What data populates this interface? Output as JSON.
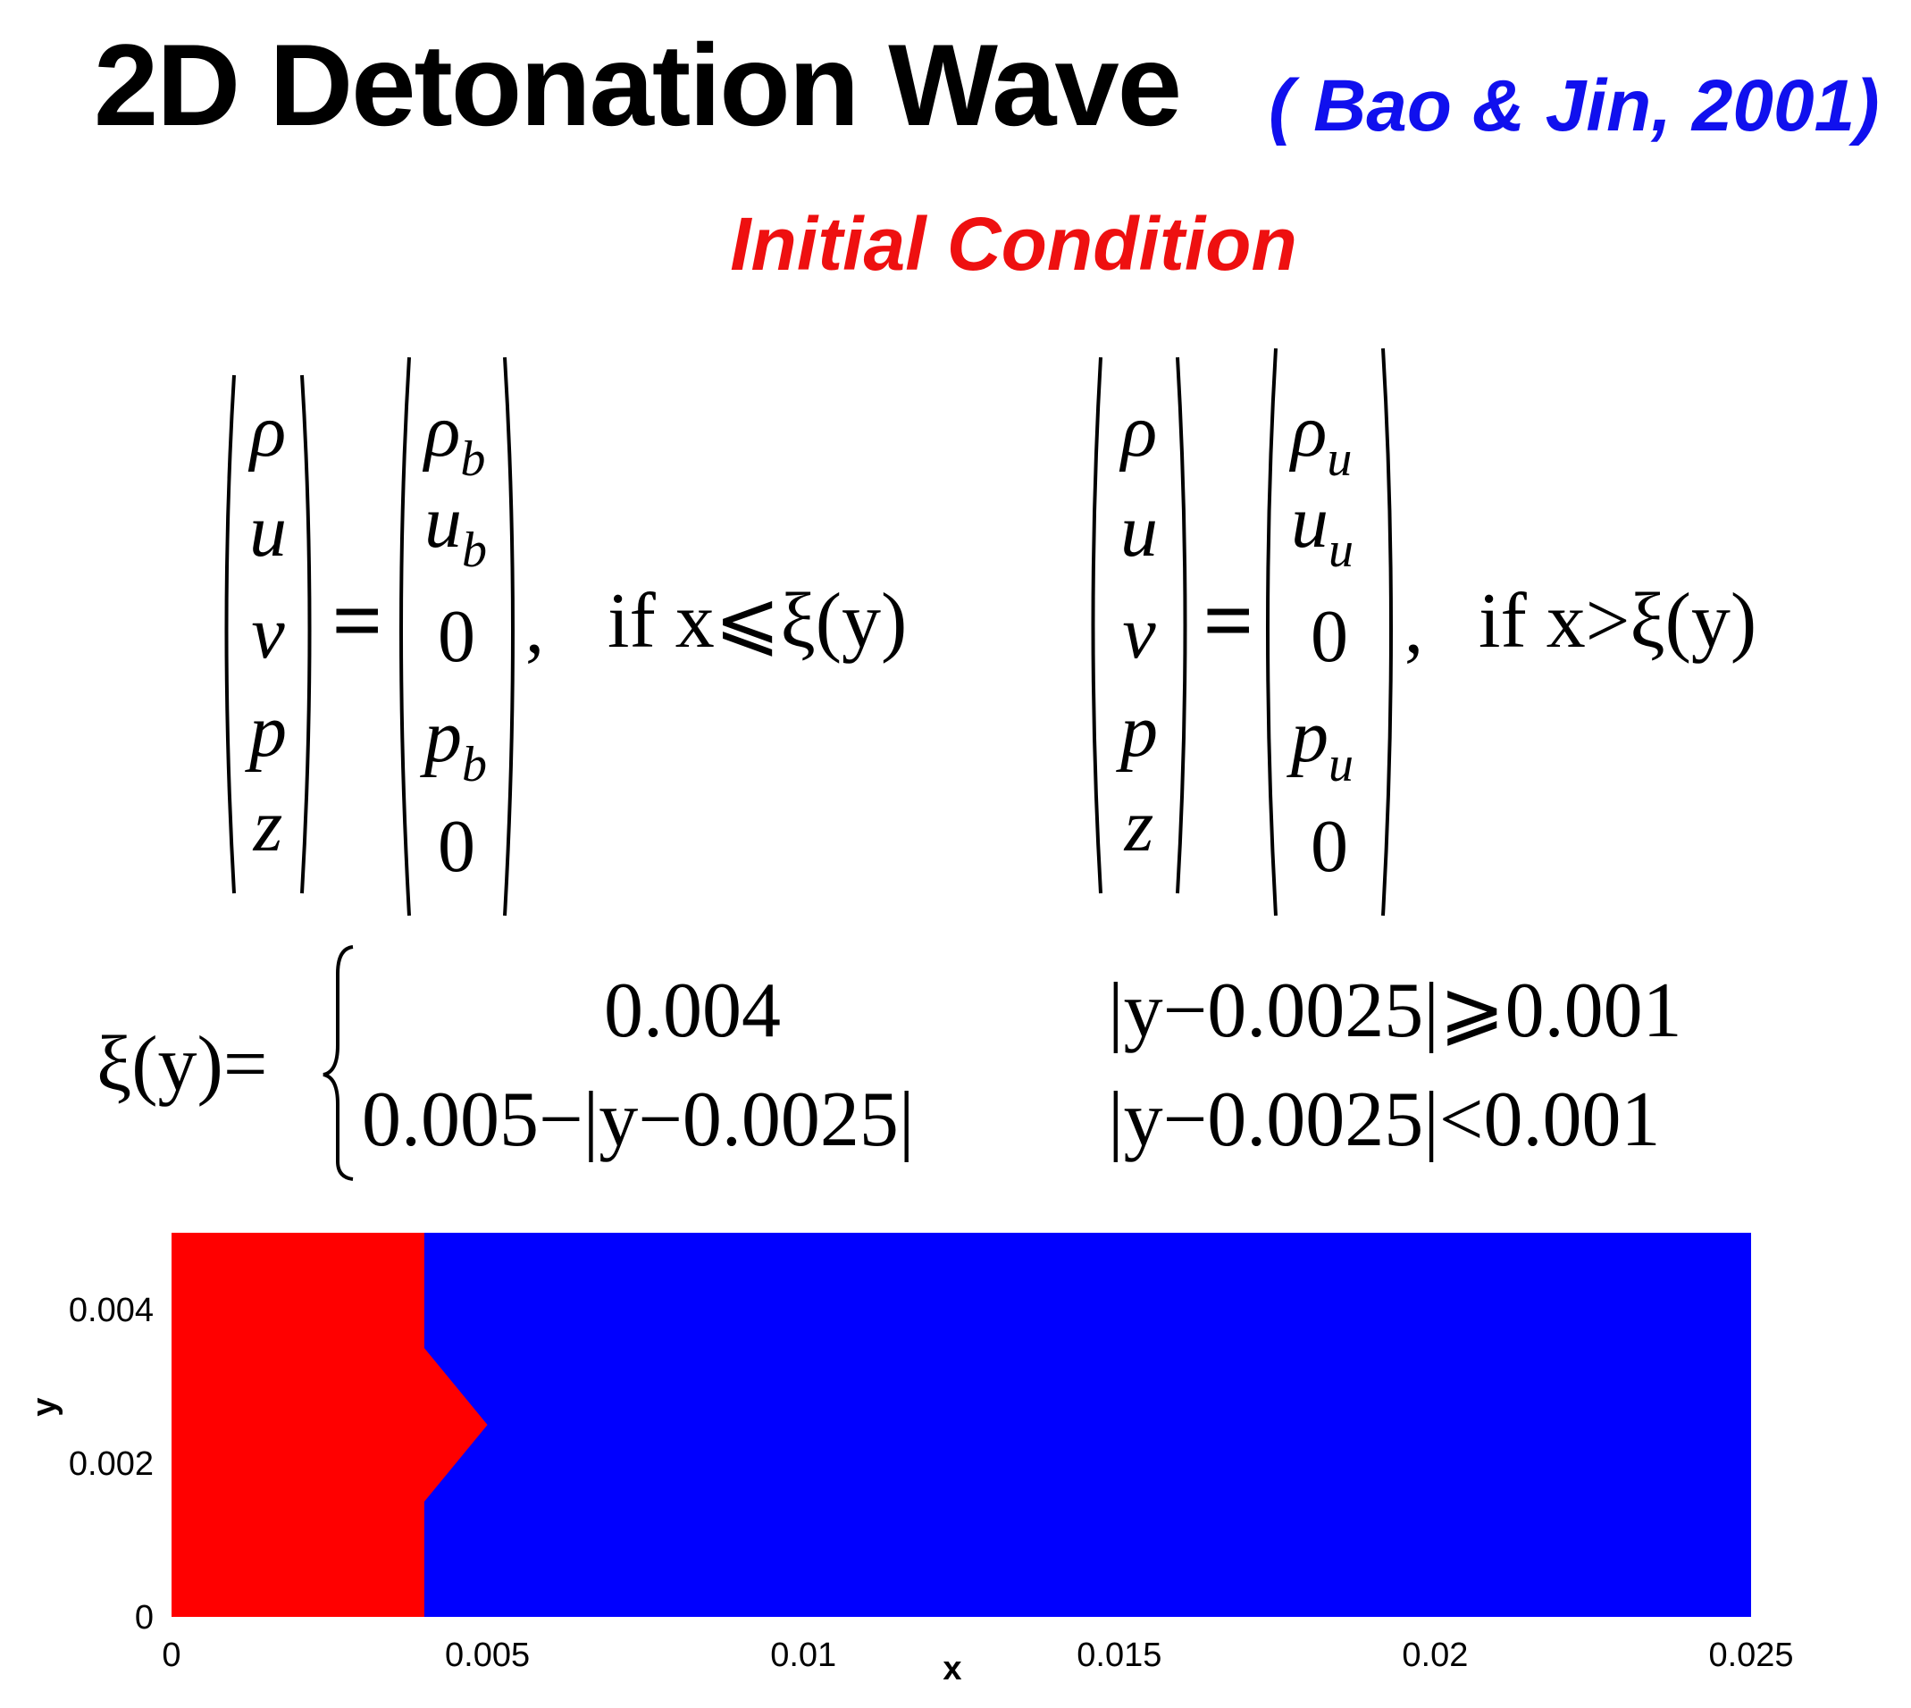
{
  "title": "2D Detonation Wave",
  "citation": "( Bao & Jin, 2001)",
  "subtitle": "Initial Condition",
  "colors": {
    "citation": "#1010ee",
    "subtitle": "#ee1010",
    "burnt_region": "#ff0000",
    "unburnt_region": "#0000ff"
  },
  "equations": {
    "vars": [
      "ρ",
      "u",
      "v",
      "p",
      "z"
    ],
    "left": {
      "values": [
        "ρ",
        "u",
        "0",
        "p",
        "0"
      ],
      "subs": [
        "b",
        "b",
        "",
        "b",
        ""
      ],
      "condition": "if x⩽ξ(y)"
    },
    "right": {
      "values": [
        "ρ",
        "u",
        "0",
        "p",
        "0"
      ],
      "subs": [
        "u",
        "u",
        "",
        "u",
        ""
      ],
      "condition": "if x>ξ(y)"
    },
    "xi_lhs": "ξ(y)=",
    "xi_cases": [
      {
        "value": "0.004",
        "condition": "|y−0.0025|⩾0.001"
      },
      {
        "value": "0.005−|y−0.0025|",
        "condition": "|y−0.0025|<0.001"
      }
    ]
  },
  "chart_data": {
    "type": "area",
    "xlabel": "x",
    "ylabel": "y",
    "xlim": [
      0,
      0.025
    ],
    "ylim": [
      0,
      0.005
    ],
    "xticks": [
      0,
      0.005,
      0.01,
      0.015,
      0.02,
      0.025
    ],
    "xtick_labels": [
      "0",
      "0.005",
      "0.01",
      "0.015",
      "0.02",
      "0.025"
    ],
    "yticks": [
      0,
      0.002,
      0.004
    ],
    "ytick_labels": [
      "0",
      "0.002",
      "0.004"
    ],
    "front_points": [
      [
        0.004,
        0
      ],
      [
        0.004,
        0.0015
      ],
      [
        0.005,
        0.0025
      ],
      [
        0.004,
        0.0035
      ],
      [
        0.004,
        0.005
      ]
    ]
  }
}
